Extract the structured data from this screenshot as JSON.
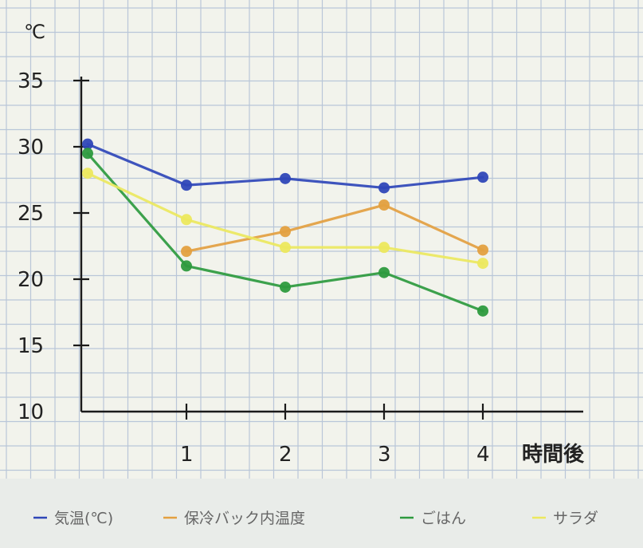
{
  "chart_data": {
    "type": "line",
    "ylabel": "℃",
    "xlabel": "時間後",
    "x": [
      0,
      1,
      2,
      3,
      4
    ],
    "x_tick_labels": [
      "1",
      "2",
      "3",
      "4"
    ],
    "y_tick_labels": [
      "10",
      "15",
      "20",
      "25",
      "30",
      "35"
    ],
    "ylim": [
      10,
      35
    ],
    "xlim": [
      0,
      4
    ],
    "grid": true,
    "legend_position": "bottom",
    "series": [
      {
        "name": "気温(℃)",
        "color": "#2f47b8",
        "values": [
          30.2,
          27.1,
          27.6,
          26.9,
          27.7
        ]
      },
      {
        "name": "保冷バック内温度",
        "color": "#e3a040",
        "values": [
          null,
          22.1,
          23.6,
          25.6,
          22.2
        ]
      },
      {
        "name": "ごはん",
        "color": "#2d9a3e",
        "values": [
          29.5,
          21.0,
          19.4,
          20.5,
          17.6
        ]
      },
      {
        "name": "サラダ",
        "color": "#ece85e",
        "values": [
          28.0,
          24.5,
          22.4,
          22.4,
          21.2
        ]
      }
    ]
  }
}
